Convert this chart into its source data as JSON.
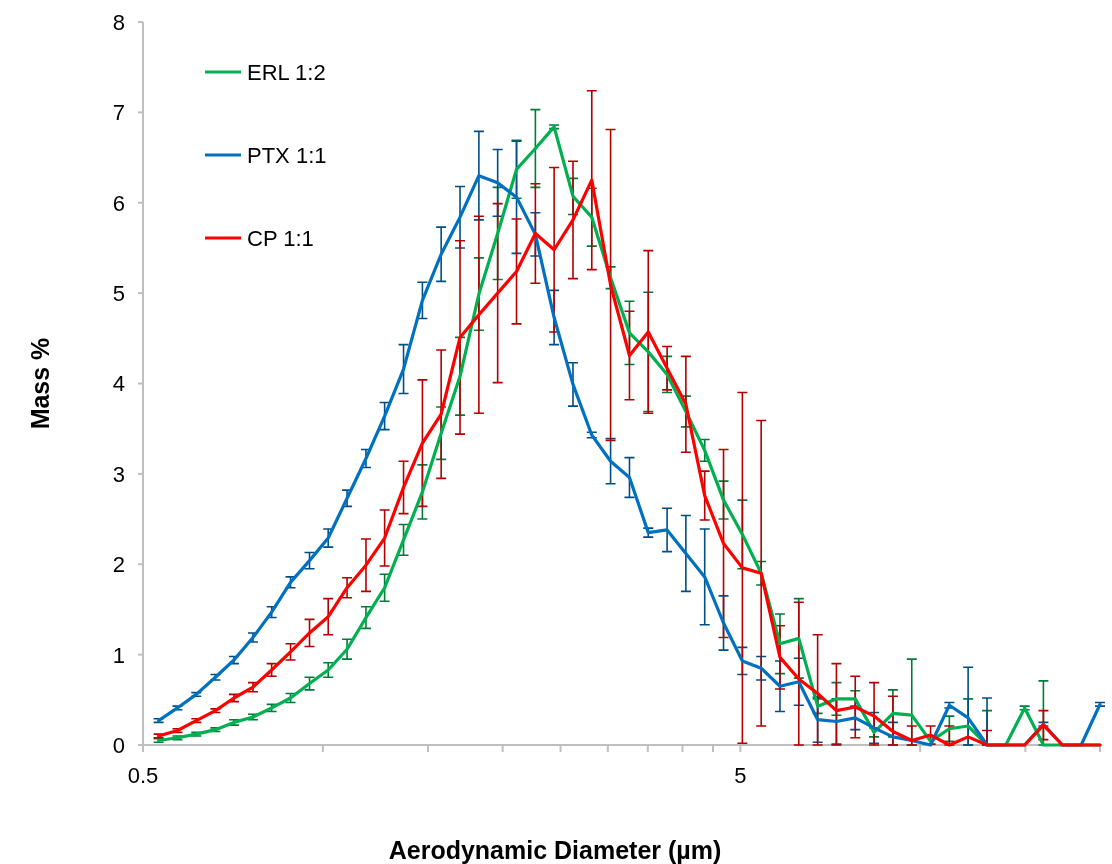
{
  "chart_data": {
    "type": "line",
    "xlabel": "Aerodynamic Diameter (µm)",
    "ylabel": "Mass %",
    "x": [
      0.531,
      0.571,
      0.614,
      0.661,
      0.71,
      0.764,
      0.821,
      0.883,
      0.95,
      1.021,
      1.098,
      1.181,
      1.269,
      1.365,
      1.468,
      1.578,
      1.697,
      1.825,
      1.962,
      2.11,
      2.269,
      2.439,
      2.623,
      2.82,
      3.032,
      3.261,
      3.506,
      3.77,
      4.053,
      4.358,
      4.686,
      5.039,
      5.418,
      5.825,
      6.263,
      6.735,
      7.241,
      7.786,
      8.372,
      9.002,
      9.681,
      10.41,
      11.19,
      12.03,
      12.94,
      13.91,
      14.96,
      16.08,
      17.3,
      18.6,
      20
    ],
    "series": [
      {
        "name": "ERL 1:2",
        "color": "#00b050",
        "values": [
          0.05,
          0.08,
          0.12,
          0.17,
          0.25,
          0.31,
          0.41,
          0.52,
          0.68,
          0.83,
          1.06,
          1.41,
          1.74,
          2.27,
          2.8,
          3.45,
          4.08,
          4.99,
          5.66,
          6.37,
          6.6,
          6.84,
          6.07,
          5.84,
          5.17,
          4.56,
          4.35,
          4.1,
          3.69,
          3.26,
          2.71,
          2.33,
          1.9,
          1.12,
          1.18,
          0.43,
          0.51,
          0.51,
          0.14,
          0.35,
          0.33,
          0.04,
          0.18,
          0.21,
          0,
          0,
          0.41,
          0,
          0,
          0,
          0
        ],
        "errors": [
          0.02,
          0.02,
          0.02,
          0.02,
          0.03,
          0.03,
          0.04,
          0.05,
          0.07,
          0.08,
          0.11,
          0.12,
          0.15,
          0.17,
          0.3,
          0.29,
          0.43,
          0.4,
          0.51,
          0.32,
          0.43,
          0.02,
          0.2,
          0.32,
          0.12,
          0.35,
          0.66,
          0.2,
          0.17,
          0.12,
          0.21,
          0.38,
          0.13,
          0.33,
          0.44,
          0.08,
          0.18,
          0.09,
          0.05,
          0.26,
          [
            0,
            0.95
          ],
          null,
          0.14,
          [
            0,
            0.51
          ],
          [
            0,
            0.38
          ],
          null,
          0.02,
          [
            0,
            0.71
          ],
          null,
          null,
          null
        ]
      },
      {
        "name": "PTX 1:1",
        "color": "#0070c0",
        "values": [
          0.27,
          0.41,
          0.56,
          0.75,
          0.94,
          1.19,
          1.47,
          1.8,
          2.04,
          2.29,
          2.73,
          3.17,
          3.64,
          4.16,
          4.92,
          5.43,
          5.84,
          6.3,
          6.22,
          6.06,
          5.65,
          4.73,
          3.99,
          3.43,
          3.14,
          2.96,
          2.35,
          2.38,
          2.12,
          1.86,
          1.35,
          0.93,
          0.85,
          0.65,
          0.7,
          0.28,
          0.26,
          0.3,
          0.19,
          0.09,
          0.05,
          0,
          0.44,
          0.3,
          0,
          0,
          0,
          0.23,
          0,
          0,
          0.45
        ],
        "errors": [
          0.02,
          0.02,
          0.02,
          0.03,
          0.04,
          0.05,
          0.06,
          0.06,
          0.09,
          0.1,
          0.09,
          0.1,
          0.15,
          0.27,
          0.2,
          0.3,
          0.34,
          0.49,
          0.37,
          0.62,
          0.24,
          0.3,
          0.24,
          0.03,
          0.25,
          0.22,
          0.05,
          0.24,
          0.42,
          0.53,
          0.3,
          0.15,
          0.13,
          0.28,
          0.26,
          0.25,
          0.25,
          0.13,
          0.17,
          [
            0,
            0.25
          ],
          null,
          null,
          0.03,
          [
            0,
            0.86
          ],
          [
            0,
            0.52
          ],
          null,
          null,
          0.02,
          null,
          null,
          0.02
        ]
      },
      {
        "name": "CP 1:1",
        "color": "#ff0000",
        "values": [
          0.1,
          0.16,
          0.27,
          0.38,
          0.52,
          0.64,
          0.83,
          1.03,
          1.24,
          1.42,
          1.74,
          1.99,
          2.29,
          2.85,
          3.34,
          3.66,
          4.51,
          4.76,
          5,
          5.24,
          5.66,
          5.48,
          5.81,
          6.25,
          5.09,
          4.31,
          4.57,
          4.17,
          3.77,
          2.76,
          2.23,
          1.96,
          1.9,
          0.97,
          0.73,
          0.57,
          0.38,
          0.42,
          0.32,
          0.15,
          0.05,
          0.11,
          0,
          0.09,
          0,
          0,
          0,
          0.22,
          0,
          0,
          0
        ],
        "errors": [
          0.02,
          0.02,
          0.02,
          0.02,
          0.04,
          0.05,
          0.07,
          0.09,
          0.15,
          0.2,
          0.11,
          0.29,
          0.31,
          0.29,
          0.7,
          0.71,
          1.07,
          1.09,
          0.99,
          0.58,
          0.55,
          0.91,
          0.65,
          0.99,
          1.72,
          0.49,
          0.9,
          0.24,
          0.53,
          0.27,
          1.04,
          1.94,
          1.69,
          0.35,
          [
            0,
            1.58
          ],
          [
            0,
            1.22
          ],
          [
            0,
            0.9
          ],
          0.34,
          [
            0,
            0.69
          ],
          [
            0,
            0.54
          ],
          [
            0,
            0.21
          ],
          0.1,
          [
            0,
            0.21
          ],
          null,
          [
            0,
            0.16
          ],
          null,
          null,
          0.16,
          null,
          null,
          null
        ]
      }
    ],
    "log": "x",
    "xlim": [
      0.5,
      20
    ],
    "xticks": [
      0.5,
      {
        "value": 1,
        "label": null
      },
      {
        "value": 1.5,
        "label": null
      },
      {
        "value": 2,
        "label": null
      },
      {
        "value": 2.5,
        "label": null
      },
      {
        "value": 3,
        "label": null
      },
      {
        "value": 3.5,
        "label": null
      },
      {
        "value": 4,
        "label": null
      },
      {
        "value": 4.5,
        "label": null
      },
      5,
      {
        "value": 10,
        "label": null
      },
      {
        "value": 15,
        "label": null
      },
      {
        "value": 20,
        "label": null
      }
    ],
    "ylim": [
      0,
      8
    ],
    "yticks": [
      0,
      1,
      2,
      3,
      4,
      5,
      6,
      7,
      8
    ],
    "grid": false,
    "legend": "top left",
    "marker": "none",
    "line_style": "solid"
  }
}
